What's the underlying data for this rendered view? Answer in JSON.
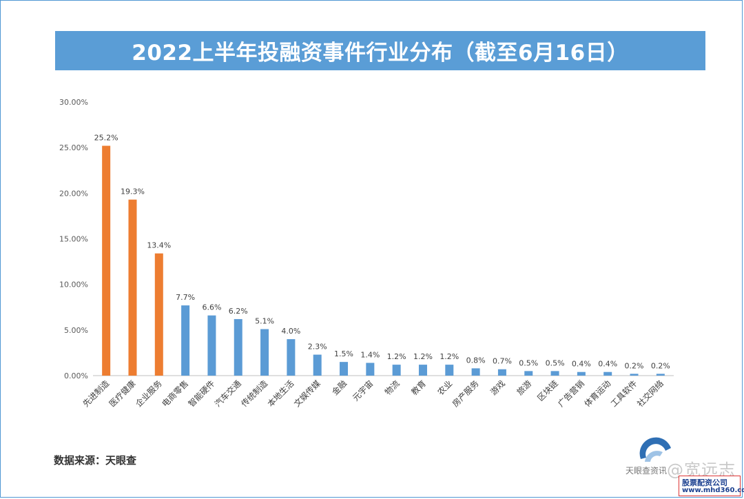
{
  "chart_data": {
    "type": "bar",
    "title": "2022上半年投融资事件行业分布（截至6月16日）",
    "xlabel": "",
    "ylabel": "",
    "ylim": [
      0,
      30
    ],
    "y_ticks": [
      "0.00%",
      "5.00%",
      "10.00%",
      "15.00%",
      "20.00%",
      "25.00%",
      "30.00%"
    ],
    "grid": false,
    "categories": [
      "先进制造",
      "医疗健康",
      "企业服务",
      "电商零售",
      "智能硬件",
      "汽车交通",
      "传统制造",
      "本地生活",
      "文娱传媒",
      "金融",
      "元宇宙",
      "物流",
      "教育",
      "农业",
      "房产服务",
      "游戏",
      "旅游",
      "区块链",
      "广告营销",
      "体育运动",
      "工具软件",
      "社交网络"
    ],
    "values": [
      25.2,
      19.3,
      13.4,
      7.7,
      6.6,
      6.2,
      5.1,
      4.0,
      2.3,
      1.5,
      1.4,
      1.2,
      1.2,
      1.2,
      0.8,
      0.7,
      0.5,
      0.5,
      0.4,
      0.4,
      0.2,
      0.2
    ],
    "value_labels": [
      "25.2%",
      "19.3%",
      "13.4%",
      "7.7%",
      "6.6%",
      "6.2%",
      "5.1%",
      "4.0%",
      "2.3%",
      "1.5%",
      "1.4%",
      "1.2%",
      "1.2%",
      "1.2%",
      "0.8%",
      "0.7%",
      "0.5%",
      "0.5%",
      "0.4%",
      "0.4%",
      "0.2%",
      "0.2%"
    ],
    "highlight_count": 3,
    "colors": {
      "highlight": "#ed7d31",
      "normal": "#5b9bd5",
      "banner": "#5a9dd6",
      "axis": "#bfbfbf"
    }
  },
  "source": "数据来源：天眼查",
  "watermark": {
    "text": "@宽远志",
    "small_text": "天眼查资讯",
    "box_cn": "股票配资公司",
    "box_url": "www.mhd360.com"
  }
}
